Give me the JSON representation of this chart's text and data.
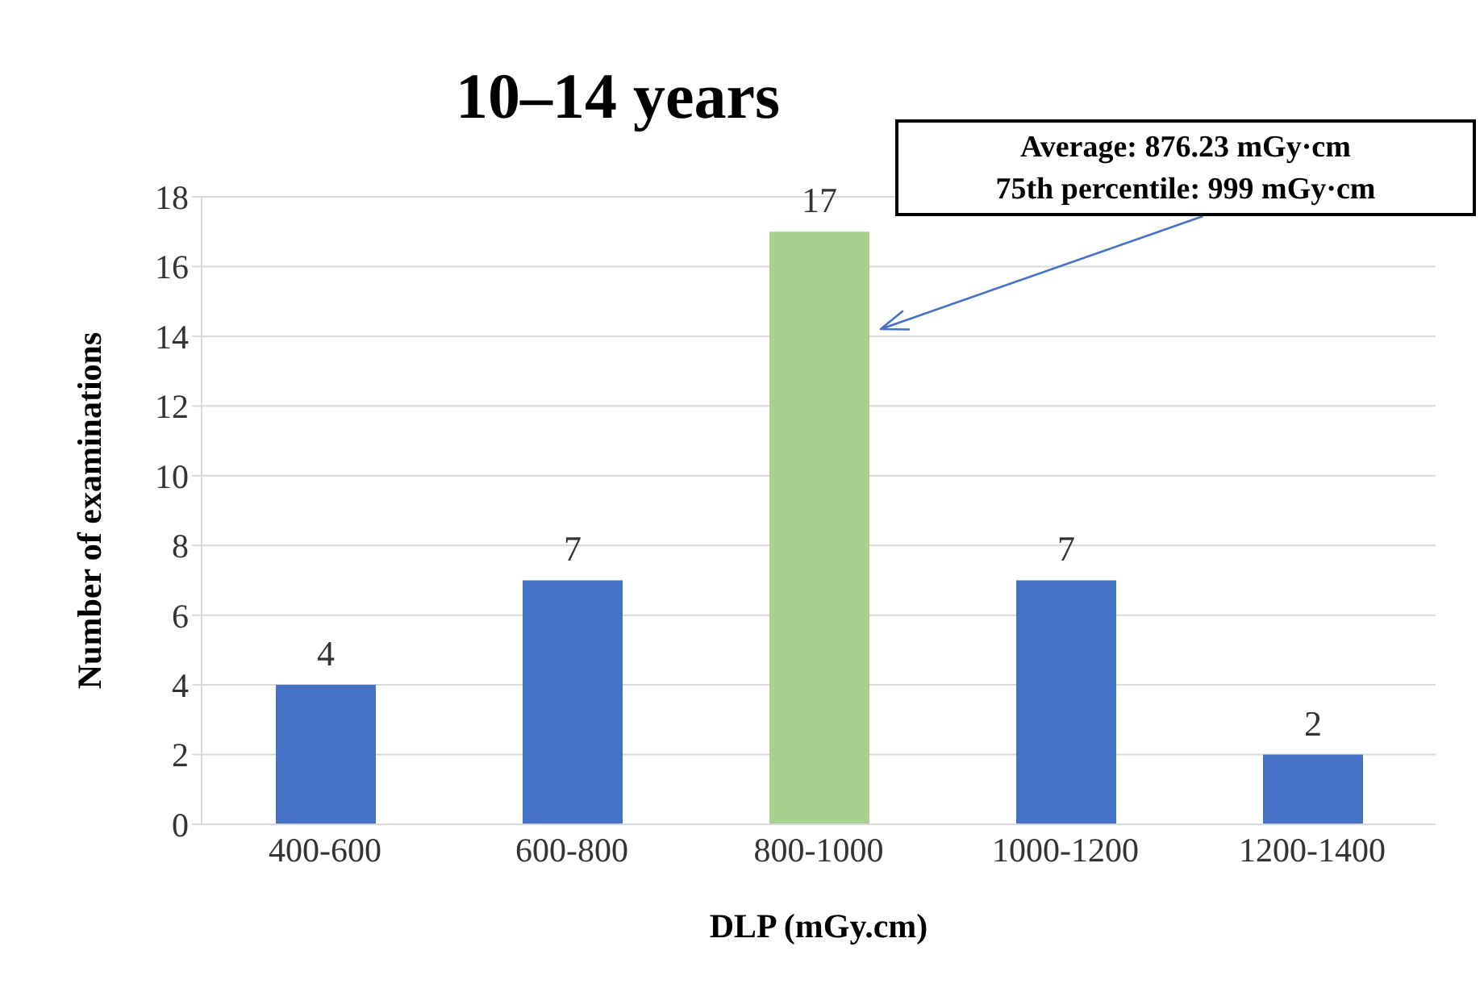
{
  "chart_data": {
    "type": "bar",
    "title": "10–14 years",
    "xlabel": "DLP (mGy.cm)",
    "ylabel": "Number of examinations",
    "categories": [
      "400-600",
      "600-800",
      "800-1000",
      "1000-1200",
      "1200-1400"
    ],
    "values": [
      4,
      7,
      17,
      7,
      2
    ],
    "colors": [
      "#4472c4",
      "#4472c4",
      "#a9d18e",
      "#4472c4",
      "#4472c4"
    ],
    "ylim": [
      0,
      18
    ],
    "yticks": [
      0,
      2,
      4,
      6,
      8,
      10,
      12,
      14,
      16,
      18
    ],
    "grid": "y",
    "data_labels": true,
    "legend": false,
    "annotations": [
      "Average: 876.23 mGy·cm\n75th percentile: 999 mGy·cm"
    ]
  }
}
